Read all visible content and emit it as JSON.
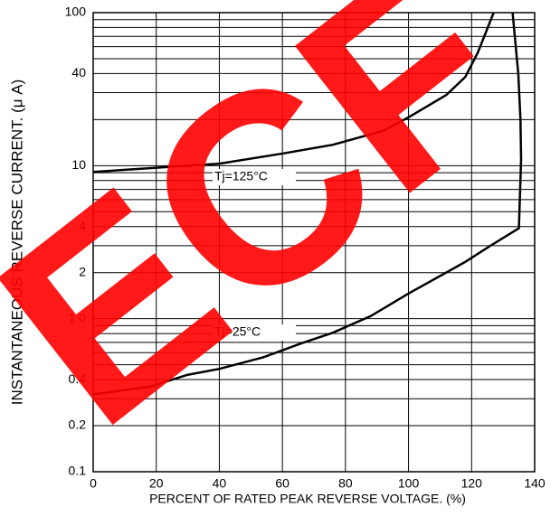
{
  "chart_data": {
    "type": "line",
    "xlabel": "PERCENT OF RATED PEAK REVERSE VOLTAGE. (%)",
    "ylabel": "INSTANTANEOUS REVERSE CURRENT. (μ A)",
    "xlim": [
      0,
      140
    ],
    "xticks": [
      0,
      20,
      40,
      60,
      80,
      100,
      120,
      140
    ],
    "ylim": [
      0.1,
      100
    ],
    "log_y": true,
    "yticks": [
      0.1,
      0.2,
      0.4,
      {
        "value": 1,
        "label": "1.0"
      },
      2,
      4,
      10,
      40,
      100
    ],
    "y_grid": [
      0.1,
      0.2,
      0.3,
      0.4,
      0.5,
      0.6,
      0.7,
      0.8,
      0.9,
      1,
      2,
      3,
      4,
      5,
      6,
      7,
      8,
      9,
      10,
      20,
      30,
      40,
      50,
      60,
      70,
      80,
      90,
      100
    ],
    "grid": true,
    "series": [
      {
        "name": "Tj=125°C",
        "color": "#000000",
        "x": [
          0,
          20,
          40,
          60,
          76,
          92,
          100,
          112,
          118,
          122,
          127
        ],
        "values": [
          9.1,
          9.7,
          10.3,
          12,
          13.7,
          16.9,
          20.7,
          29,
          38,
          55,
          100
        ]
      },
      {
        "name": "Tj=25°C",
        "color": "#000000",
        "x": [
          0,
          18,
          30,
          40,
          54,
          66,
          76,
          88,
          100,
          118,
          126,
          135,
          135.7,
          135.5,
          134.8,
          133
        ],
        "values": [
          0.32,
          0.36,
          0.43,
          0.47,
          0.56,
          0.69,
          0.81,
          1.04,
          1.46,
          2.35,
          3.0,
          3.9,
          11,
          20,
          40,
          100
        ]
      }
    ],
    "watermark": "ECF"
  }
}
